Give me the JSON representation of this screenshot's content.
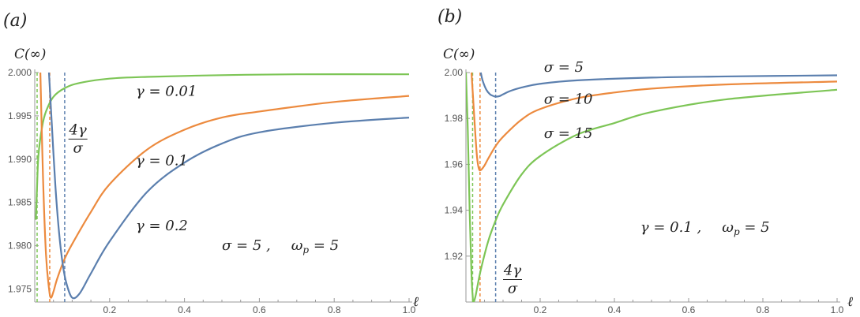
{
  "figure": {
    "panel_labels": [
      "(a)",
      "(b)"
    ]
  },
  "colors": {
    "blue": "#5b7fae",
    "orange": "#ec8a3e",
    "green": "#7dc556",
    "axis": "#999999"
  },
  "chart_data": [
    {
      "type": "line",
      "panel": "(a)",
      "ylabel": "C(∞)",
      "xlabel": "ℓ",
      "xlim": [
        0.0,
        1.0
      ],
      "ylim": [
        1.9735,
        2.0
      ],
      "xticks": [
        0.2,
        0.4,
        0.6,
        0.8,
        1.0
      ],
      "xtick_labels": [
        "0.2",
        "0.4",
        "0.6",
        "0.8",
        "1.0"
      ],
      "yticks": [
        1.975,
        1.98,
        1.985,
        1.99,
        1.995,
        2.0
      ],
      "ytick_labels": [
        "1.975",
        "1.980",
        "1.985",
        "1.990",
        "1.995",
        "2.000"
      ],
      "series": [
        {
          "name": "γ = 0.01",
          "color": "green",
          "x": [
            0.003,
            0.006,
            0.01,
            0.02,
            0.03,
            0.05,
            0.08,
            0.12,
            0.2,
            0.3,
            0.5,
            0.7,
            1.0
          ],
          "y": [
            1.983,
            1.9866,
            1.9905,
            1.9938,
            1.9955,
            1.9972,
            1.9982,
            1.9988,
            1.9993,
            1.9995,
            1.9997,
            1.9998,
            1.9998
          ]
        },
        {
          "name": "γ = 0.1",
          "color": "orange",
          "x": [
            0.015,
            0.022,
            0.03,
            0.038,
            0.043,
            0.05,
            0.06,
            0.08,
            0.1,
            0.15,
            0.2,
            0.3,
            0.4,
            0.5,
            0.6,
            0.8,
            1.0
          ],
          "y": [
            2.0,
            1.988,
            1.979,
            1.9751,
            1.974,
            1.9747,
            1.9762,
            1.9785,
            1.9802,
            1.9839,
            1.9871,
            1.9911,
            1.9934,
            1.9948,
            1.9955,
            1.9966,
            1.9973
          ]
        },
        {
          "name": "γ = 0.2",
          "color": "blue",
          "x": [
            0.038,
            0.045,
            0.055,
            0.065,
            0.075,
            0.085,
            0.1,
            0.12,
            0.15,
            0.2,
            0.3,
            0.4,
            0.5,
            0.6,
            0.8,
            1.0
          ],
          "y": [
            2.0,
            1.9945,
            1.987,
            1.9815,
            1.9778,
            1.9756,
            1.974,
            1.9745,
            1.9768,
            1.9805,
            1.9862,
            1.9896,
            1.9918,
            1.9931,
            1.9942,
            1.9948
          ]
        }
      ],
      "reference_lines": [
        {
          "x": 0.0,
          "color": "green"
        },
        {
          "x": 0.04,
          "color": "orange"
        },
        {
          "x": 0.08,
          "color": "blue"
        }
      ],
      "annotations": {
        "labels": [
          {
            "text": "γ = 0.01",
            "at": [
              0.27,
              1.9973
            ]
          },
          {
            "text": "γ = 0.1",
            "at": [
              0.27,
              1.9893
            ]
          },
          {
            "text": "γ = 0.2",
            "at": [
              0.27,
              1.9818
            ]
          }
        ],
        "fraction": {
          "numerator": "4γ",
          "denominator": "σ",
          "at": [
            0.09,
            1.9925
          ]
        },
        "params": {
          "text": "σ = 5 ,    ωp = 5",
          "sigma": "σ = 5 ,",
          "omega": "ω",
          "omega_sub": "p",
          "omega_val": " = 5",
          "at": [
            0.5,
            1.9795
          ]
        }
      }
    },
    {
      "type": "line",
      "panel": "(b)",
      "ylabel": "C(∞)",
      "xlabel": "ℓ",
      "xlim": [
        0.0,
        1.0
      ],
      "ylim": [
        1.9,
        2.0
      ],
      "xticks": [
        0.2,
        0.4,
        0.6,
        0.8,
        1.0
      ],
      "xtick_labels": [
        "0.2",
        "0.4",
        "0.6",
        "0.8",
        "1.0"
      ],
      "yticks": [
        1.92,
        1.94,
        1.96,
        1.98,
        2.0
      ],
      "ytick_labels": [
        "1.92",
        "1.94",
        "1.96",
        "1.98",
        "2.00"
      ],
      "series": [
        {
          "name": "σ = 5",
          "color": "blue",
          "x": [
            0.04,
            0.045,
            0.055,
            0.065,
            0.075,
            0.08,
            0.09,
            0.1,
            0.12,
            0.15,
            0.2,
            0.3,
            0.5,
            0.7,
            1.0
          ],
          "y": [
            2.0,
            1.9965,
            1.9925,
            1.9905,
            1.9897,
            1.9895,
            1.9897,
            1.9905,
            1.992,
            1.9935,
            1.9951,
            1.9966,
            1.9978,
            1.9983,
            1.9988
          ]
        },
        {
          "name": "σ = 10",
          "color": "orange",
          "x": [
            0.015,
            0.02,
            0.025,
            0.03,
            0.035,
            0.04,
            0.05,
            0.06,
            0.08,
            0.1,
            0.15,
            0.2,
            0.3,
            0.4,
            0.5,
            0.7,
            1.0
          ],
          "y": [
            2.0,
            1.987,
            1.974,
            1.963,
            1.958,
            1.9575,
            1.9595,
            1.9625,
            1.968,
            1.972,
            1.9795,
            1.9841,
            1.9888,
            1.9913,
            1.993,
            1.9948,
            1.9961
          ]
        },
        {
          "name": "σ = 15",
          "color": "green",
          "x": [
            0.0,
            0.005,
            0.01,
            0.015,
            0.018,
            0.02,
            0.025,
            0.03,
            0.04,
            0.06,
            0.08,
            0.1,
            0.15,
            0.2,
            0.3,
            0.4,
            0.5,
            0.7,
            1.0
          ],
          "y": [
            2.0,
            1.975,
            1.94,
            1.912,
            1.903,
            1.9,
            1.902,
            1.906,
            1.914,
            1.9265,
            1.9355,
            1.9425,
            1.9556,
            1.9636,
            1.973,
            1.978,
            1.9828,
            1.9883,
            1.9925
          ]
        }
      ],
      "reference_lines": [
        {
          "x": 0.018,
          "color": "green"
        },
        {
          "x": 0.038,
          "color": "orange"
        },
        {
          "x": 0.08,
          "color": "blue"
        }
      ],
      "annotations": {
        "labels": [
          {
            "text": "σ = 5",
            "at": [
              0.21,
              2.0003
            ]
          },
          {
            "text": "σ = 10",
            "at": [
              0.21,
              1.9865
            ]
          },
          {
            "text": "σ = 15",
            "at": [
              0.21,
              1.9715
            ]
          }
        ],
        "fraction": {
          "numerator": "4γ",
          "denominator": "σ",
          "at": [
            0.1,
            1.9105
          ]
        },
        "params": {
          "text": "γ = 0.1 ,    ωp = 5",
          "sigma": "γ = 0.1 ,",
          "omega": "ω",
          "omega_sub": "p",
          "omega_val": " = 5",
          "at": [
            0.47,
            1.9305
          ]
        }
      }
    }
  ]
}
